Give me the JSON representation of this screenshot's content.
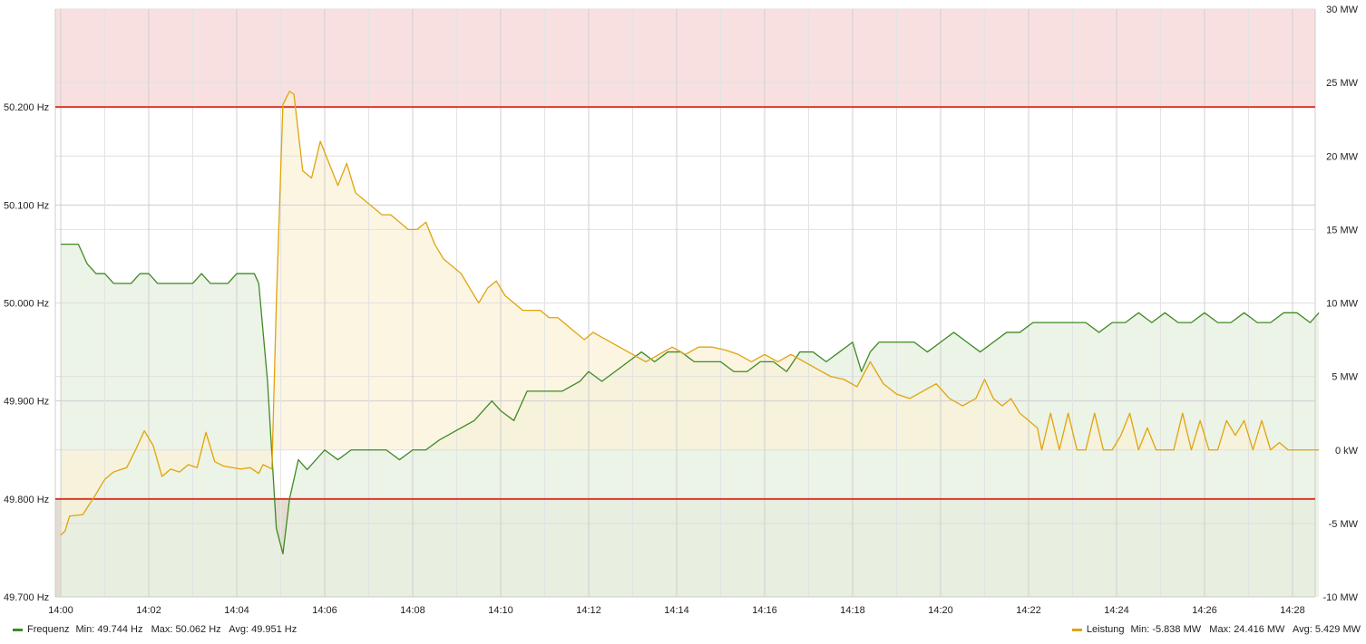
{
  "chart_data": {
    "type": "line",
    "x_ticks": [
      "14:00",
      "14:02",
      "14:04",
      "14:06",
      "14:08",
      "14:10",
      "14:12",
      "14:14",
      "14:16",
      "14:18",
      "14:20",
      "14:22",
      "14:24",
      "14:26",
      "14:28"
    ],
    "x_range_minutes": [
      0,
      28.6
    ],
    "y_left": {
      "unit": "Hz",
      "ticks": [
        "49.700 Hz",
        "49.800 Hz",
        "49.900 Hz",
        "50.000 Hz",
        "50.100 Hz",
        "50.200 Hz"
      ],
      "range": [
        49.7,
        50.3
      ]
    },
    "y_right": {
      "unit": "MW",
      "ticks": [
        "-10 MW",
        "-5 MW",
        "0 kW",
        "5 MW",
        "10 MW",
        "15 MW",
        "20 MW",
        "25 MW",
        "30 MW"
      ],
      "range": [
        -10,
        30
      ]
    },
    "thresholds": [
      {
        "axis": "left",
        "value": 50.2,
        "color": "#d93a2b",
        "band_color": "#f9e0e0"
      },
      {
        "axis": "left",
        "value": 49.8,
        "color": "#d93a2b",
        "band_color": "#e4dccf"
      }
    ],
    "series": [
      {
        "name": "Frequenz",
        "axis": "left",
        "color": "#3f8a24",
        "fill": "#e9f1e3",
        "points": [
          [
            0,
            50.06
          ],
          [
            0.2,
            50.06
          ],
          [
            0.4,
            50.06
          ],
          [
            0.6,
            50.04
          ],
          [
            0.8,
            50.03
          ],
          [
            1.0,
            50.03
          ],
          [
            1.2,
            50.02
          ],
          [
            1.4,
            50.02
          ],
          [
            1.6,
            50.02
          ],
          [
            1.8,
            50.03
          ],
          [
            2.0,
            50.03
          ],
          [
            2.2,
            50.02
          ],
          [
            2.4,
            50.02
          ],
          [
            2.6,
            50.02
          ],
          [
            2.8,
            50.02
          ],
          [
            3.0,
            50.02
          ],
          [
            3.2,
            50.03
          ],
          [
            3.4,
            50.02
          ],
          [
            3.6,
            50.02
          ],
          [
            3.8,
            50.02
          ],
          [
            4.0,
            50.03
          ],
          [
            4.2,
            50.03
          ],
          [
            4.4,
            50.03
          ],
          [
            4.5,
            50.02
          ],
          [
            4.7,
            49.92
          ],
          [
            4.9,
            49.77
          ],
          [
            5.05,
            49.744
          ],
          [
            5.2,
            49.8
          ],
          [
            5.4,
            49.84
          ],
          [
            5.6,
            49.83
          ],
          [
            5.8,
            49.84
          ],
          [
            6.0,
            49.85
          ],
          [
            6.3,
            49.84
          ],
          [
            6.6,
            49.85
          ],
          [
            7.0,
            49.85
          ],
          [
            7.4,
            49.85
          ],
          [
            7.7,
            49.84
          ],
          [
            8.0,
            49.85
          ],
          [
            8.3,
            49.85
          ],
          [
            8.6,
            49.86
          ],
          [
            9.0,
            49.87
          ],
          [
            9.4,
            49.88
          ],
          [
            9.6,
            49.89
          ],
          [
            9.8,
            49.9
          ],
          [
            10.0,
            49.89
          ],
          [
            10.3,
            49.88
          ],
          [
            10.6,
            49.91
          ],
          [
            11.0,
            49.91
          ],
          [
            11.4,
            49.91
          ],
          [
            11.8,
            49.92
          ],
          [
            12.0,
            49.93
          ],
          [
            12.3,
            49.92
          ],
          [
            12.6,
            49.93
          ],
          [
            12.9,
            49.94
          ],
          [
            13.2,
            49.95
          ],
          [
            13.5,
            49.94
          ],
          [
            13.8,
            49.95
          ],
          [
            14.1,
            49.95
          ],
          [
            14.4,
            49.94
          ],
          [
            14.7,
            49.94
          ],
          [
            15.0,
            49.94
          ],
          [
            15.3,
            49.93
          ],
          [
            15.6,
            49.93
          ],
          [
            15.9,
            49.94
          ],
          [
            16.2,
            49.94
          ],
          [
            16.5,
            49.93
          ],
          [
            16.8,
            49.95
          ],
          [
            17.1,
            49.95
          ],
          [
            17.4,
            49.94
          ],
          [
            17.7,
            49.95
          ],
          [
            18.0,
            49.96
          ],
          [
            18.2,
            49.93
          ],
          [
            18.4,
            49.95
          ],
          [
            18.6,
            49.96
          ],
          [
            19.0,
            49.96
          ],
          [
            19.4,
            49.96
          ],
          [
            19.7,
            49.95
          ],
          [
            20.0,
            49.96
          ],
          [
            20.3,
            49.97
          ],
          [
            20.6,
            49.96
          ],
          [
            20.9,
            49.95
          ],
          [
            21.2,
            49.96
          ],
          [
            21.5,
            49.97
          ],
          [
            21.8,
            49.97
          ],
          [
            22.1,
            49.98
          ],
          [
            22.4,
            49.98
          ],
          [
            22.7,
            49.98
          ],
          [
            23.0,
            49.98
          ],
          [
            23.3,
            49.98
          ],
          [
            23.6,
            49.97
          ],
          [
            23.9,
            49.98
          ],
          [
            24.2,
            49.98
          ],
          [
            24.5,
            49.99
          ],
          [
            24.8,
            49.98
          ],
          [
            25.1,
            49.99
          ],
          [
            25.4,
            49.98
          ],
          [
            25.7,
            49.98
          ],
          [
            26.0,
            49.99
          ],
          [
            26.3,
            49.98
          ],
          [
            26.6,
            49.98
          ],
          [
            26.9,
            49.99
          ],
          [
            27.2,
            49.98
          ],
          [
            27.5,
            49.98
          ],
          [
            27.8,
            49.99
          ],
          [
            28.1,
            49.99
          ],
          [
            28.4,
            49.98
          ],
          [
            28.6,
            49.99
          ]
        ]
      },
      {
        "name": "Leistung",
        "axis": "right",
        "color": "#e0a40b",
        "fill": "#fbf1d6",
        "points": [
          [
            0,
            -5.8
          ],
          [
            0.1,
            -5.5
          ],
          [
            0.2,
            -4.5
          ],
          [
            0.5,
            -4.4
          ],
          [
            0.8,
            -3.0
          ],
          [
            1.0,
            -2.0
          ],
          [
            1.2,
            -1.5
          ],
          [
            1.5,
            -1.2
          ],
          [
            1.7,
            0.0
          ],
          [
            1.9,
            1.3
          ],
          [
            2.1,
            0.3
          ],
          [
            2.3,
            -1.8
          ],
          [
            2.5,
            -1.3
          ],
          [
            2.7,
            -1.5
          ],
          [
            2.9,
            -1.0
          ],
          [
            3.1,
            -1.2
          ],
          [
            3.3,
            1.2
          ],
          [
            3.5,
            -0.8
          ],
          [
            3.7,
            -1.1
          ],
          [
            3.9,
            -1.2
          ],
          [
            4.1,
            -1.3
          ],
          [
            4.3,
            -1.2
          ],
          [
            4.5,
            -1.6
          ],
          [
            4.6,
            -1.0
          ],
          [
            4.8,
            -1.3
          ],
          [
            4.9,
            10.0
          ],
          [
            5.05,
            23.5
          ],
          [
            5.2,
            24.4
          ],
          [
            5.3,
            24.2
          ],
          [
            5.5,
            19.0
          ],
          [
            5.7,
            18.5
          ],
          [
            5.9,
            21.0
          ],
          [
            6.1,
            19.5
          ],
          [
            6.3,
            18.0
          ],
          [
            6.5,
            19.5
          ],
          [
            6.7,
            17.5
          ],
          [
            6.9,
            17.0
          ],
          [
            7.1,
            16.5
          ],
          [
            7.3,
            16.0
          ],
          [
            7.5,
            16.0
          ],
          [
            7.7,
            15.5
          ],
          [
            7.9,
            15.0
          ],
          [
            8.1,
            15.0
          ],
          [
            8.3,
            15.5
          ],
          [
            8.5,
            14.0
          ],
          [
            8.7,
            13.0
          ],
          [
            8.9,
            12.5
          ],
          [
            9.1,
            12.0
          ],
          [
            9.3,
            11.0
          ],
          [
            9.5,
            10.0
          ],
          [
            9.7,
            11.0
          ],
          [
            9.9,
            11.5
          ],
          [
            10.1,
            10.5
          ],
          [
            10.3,
            10.0
          ],
          [
            10.5,
            9.5
          ],
          [
            10.7,
            9.5
          ],
          [
            10.9,
            9.5
          ],
          [
            11.1,
            9.0
          ],
          [
            11.3,
            9.0
          ],
          [
            11.5,
            8.5
          ],
          [
            11.7,
            8.0
          ],
          [
            11.9,
            7.5
          ],
          [
            12.1,
            8.0
          ],
          [
            12.4,
            7.5
          ],
          [
            12.7,
            7.0
          ],
          [
            13.0,
            6.5
          ],
          [
            13.3,
            6.0
          ],
          [
            13.6,
            6.5
          ],
          [
            13.9,
            7.0
          ],
          [
            14.2,
            6.5
          ],
          [
            14.5,
            7.0
          ],
          [
            14.8,
            7.0
          ],
          [
            15.1,
            6.8
          ],
          [
            15.4,
            6.5
          ],
          [
            15.7,
            6.0
          ],
          [
            16.0,
            6.5
          ],
          [
            16.3,
            6.0
          ],
          [
            16.6,
            6.5
          ],
          [
            16.9,
            6.0
          ],
          [
            17.2,
            5.5
          ],
          [
            17.5,
            5.0
          ],
          [
            17.8,
            4.8
          ],
          [
            18.1,
            4.3
          ],
          [
            18.4,
            6.0
          ],
          [
            18.7,
            4.5
          ],
          [
            19.0,
            3.8
          ],
          [
            19.3,
            3.5
          ],
          [
            19.6,
            4.0
          ],
          [
            19.9,
            4.5
          ],
          [
            20.2,
            3.5
          ],
          [
            20.5,
            3.0
          ],
          [
            20.8,
            3.5
          ],
          [
            21.0,
            4.8
          ],
          [
            21.2,
            3.5
          ],
          [
            21.4,
            3.0
          ],
          [
            21.6,
            3.5
          ],
          [
            21.8,
            2.5
          ],
          [
            22.0,
            2.0
          ],
          [
            22.2,
            1.5
          ],
          [
            22.3,
            0
          ],
          [
            22.5,
            2.5
          ],
          [
            22.7,
            0
          ],
          [
            22.9,
            2.5
          ],
          [
            23.1,
            0
          ],
          [
            23.3,
            0
          ],
          [
            23.5,
            2.5
          ],
          [
            23.7,
            0
          ],
          [
            23.9,
            0
          ],
          [
            24.1,
            1.0
          ],
          [
            24.3,
            2.5
          ],
          [
            24.5,
            0
          ],
          [
            24.7,
            1.5
          ],
          [
            24.9,
            0
          ],
          [
            25.1,
            0
          ],
          [
            25.3,
            0
          ],
          [
            25.5,
            2.5
          ],
          [
            25.7,
            0
          ],
          [
            25.9,
            2.0
          ],
          [
            26.1,
            0
          ],
          [
            26.3,
            0
          ],
          [
            26.5,
            2.0
          ],
          [
            26.7,
            1.0
          ],
          [
            26.9,
            2.0
          ],
          [
            27.1,
            0
          ],
          [
            27.3,
            2.0
          ],
          [
            27.5,
            0
          ],
          [
            27.7,
            0.5
          ],
          [
            27.9,
            0
          ],
          [
            28.1,
            0
          ],
          [
            28.3,
            0
          ],
          [
            28.6,
            0
          ]
        ]
      }
    ]
  },
  "legend": {
    "frequenz": {
      "label": "Frequenz",
      "stats": "Min: 49.744 Hz   Max: 50.062 Hz   Avg: 49.951 Hz",
      "color": "#3f8a24"
    },
    "leistung": {
      "label": "Leistung",
      "stats": "Min: -5.838 MW   Max: 24.416 MW   Avg: 5.429 MW",
      "color": "#e0a40b"
    }
  }
}
